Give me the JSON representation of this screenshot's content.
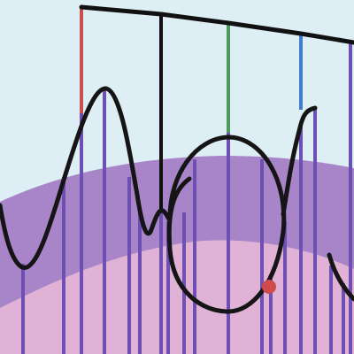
{
  "scene": {
    "colors": {
      "sky": "#ddeef5",
      "hill_back": "#a885c8",
      "hill_front": "#e0b2d5",
      "stake": "#6e4fb3",
      "rope": "#111111",
      "drawn_line": "#151515",
      "flag_red": "#c9504f",
      "flag_black": "#111111",
      "flag_green": "#4d9a5f",
      "flag_blue": "#3f7fc9",
      "flag_purple": "#6e4fb3",
      "marker": "#d04b4b"
    }
  }
}
